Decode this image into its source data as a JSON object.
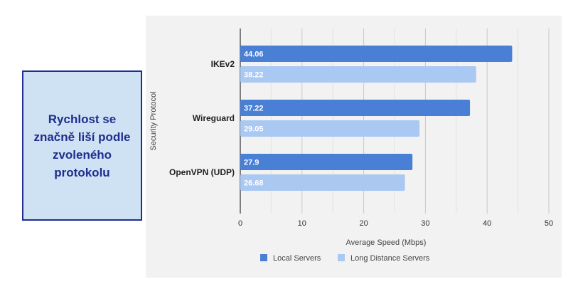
{
  "callout": {
    "text": "Rychlost se značně liší podle zvoleného protokolu"
  },
  "colors": {
    "local": "#4a7fd6",
    "long_distance": "#a9c8f2",
    "callout_bg": "#cfe2f3",
    "callout_border": "#1f2d8f"
  },
  "chart_data": {
    "type": "bar",
    "orientation": "horizontal",
    "categories": [
      "IKEv2",
      "Wireguard",
      "OpenVPN (UDP)"
    ],
    "series": [
      {
        "name": "Local Servers",
        "values": [
          44.06,
          37.22,
          27.9
        ]
      },
      {
        "name": "Long Distance Servers",
        "values": [
          38.22,
          29.05,
          26.68
        ]
      }
    ],
    "value_labels": [
      [
        "44.06",
        "37.22",
        "27.9"
      ],
      [
        "38.22",
        "29.05",
        "26.68"
      ]
    ],
    "xlabel": "Average Speed (Mbps)",
    "ylabel": "Security Protocol",
    "xlim": [
      0,
      50
    ],
    "xticks": [
      "0",
      "10",
      "20",
      "30",
      "40",
      "50"
    ],
    "grid": true,
    "legend_position": "bottom"
  }
}
